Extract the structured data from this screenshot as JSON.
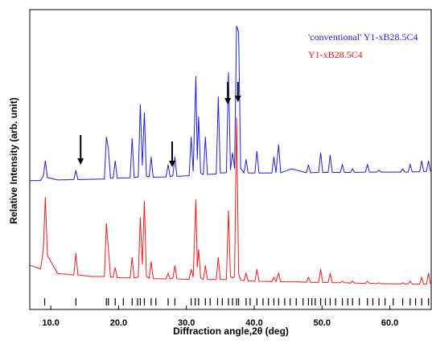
{
  "chart_data": {
    "type": "line",
    "xlabel": "Diffraction angle,2θ (deg)",
    "ylabel": "Relative Intensity (arb. unit)",
    "xlim": [
      6.9,
      66.1
    ],
    "ylim": [
      0,
      100
    ],
    "xticks": [
      {
        "value": 10,
        "label": "10.0"
      },
      {
        "value": 20,
        "label": "20.0"
      },
      {
        "value": 30,
        "label": "30.0"
      },
      {
        "value": 40,
        "label": "40.0"
      },
      {
        "value": 50,
        "label": "50.0"
      },
      {
        "value": 60,
        "label": "60.0"
      }
    ],
    "x": [
      7.0,
      8.5,
      8.9,
      9.2,
      9.5,
      11,
      13.4,
      13.7,
      14.0,
      16,
      17.9,
      18.2,
      18.5,
      18.8,
      19.2,
      19.5,
      19.8,
      21.7,
      22.0,
      22.3,
      22.9,
      23.2,
      23.5,
      23.8,
      24.1,
      24.5,
      24.8,
      25.1,
      27.0,
      27.3,
      27.6,
      28.0,
      28.3,
      28.6,
      30.4,
      30.7,
      31.0,
      31.4,
      31.6,
      31.8,
      32.1,
      32.5,
      32.8,
      33.1,
      34.4,
      34.7,
      35.0,
      35.9,
      36.2,
      36.5,
      36.8,
      37.1,
      37.4,
      37.7,
      38.0,
      38.5,
      38.8,
      39.1,
      40.1,
      40.4,
      40.7,
      42.6,
      42.9,
      43.2,
      43.6,
      43.9,
      45.5,
      47.7,
      48.0,
      48.3,
      49.5,
      49.8,
      50.1,
      50.9,
      51.2,
      51.5,
      52.7,
      53.0,
      53.3,
      54.2,
      54.5,
      54.8,
      56.4,
      56.7,
      57.0,
      58.1,
      58.4,
      58.7,
      61.6,
      61.9,
      62.2,
      62.7,
      63.0,
      63.3,
      64.4,
      64.7,
      65.0,
      65.4,
      65.7,
      66.0
    ],
    "series": [
      {
        "name": "'conventional' Y1-xB28.5C4",
        "color": "#1f1fd6",
        "values": [
          43.0,
          43.0,
          44.5,
          49.6,
          44.0,
          43.2,
          43.3,
          46.4,
          43.3,
          43.4,
          43.5,
          57.6,
          53.6,
          43.8,
          43.8,
          49.6,
          43.8,
          43.9,
          57.1,
          44.0,
          44.2,
          68.4,
          48.0,
          65.7,
          44.5,
          44.2,
          50.9,
          44.1,
          44.2,
          48.3,
          44.3,
          44.6,
          50.9,
          44.4,
          44.6,
          57.6,
          46.0,
          77.7,
          50.0,
          64.3,
          45.5,
          45.0,
          57.6,
          45.0,
          45.2,
          71.0,
          45.5,
          45.6,
          79.1,
          46.5,
          52.3,
          47.0,
          94.6,
          92.5,
          47.0,
          45.6,
          50.1,
          45.5,
          45.5,
          52.8,
          45.5,
          45.5,
          50.9,
          45.6,
          55.0,
          45.6,
          46.9,
          45.6,
          48.3,
          45.6,
          45.7,
          52.3,
          45.7,
          45.7,
          51.5,
          45.7,
          45.7,
          48.3,
          45.7,
          45.7,
          46.9,
          45.7,
          45.8,
          48.3,
          45.8,
          45.8,
          46.5,
          45.8,
          45.8,
          46.9,
          45.8,
          45.8,
          48.3,
          45.9,
          45.9,
          49.6,
          46.0,
          46.0,
          49.6,
          46.0
        ]
      },
      {
        "name": "Y1-xB28.5C4",
        "color": "#ee1c1c",
        "values": [
          14.7,
          13.5,
          20.0,
          37.5,
          18.0,
          12.0,
          11.5,
          18.8,
          11.5,
          11.0,
          11.0,
          28.7,
          20.1,
          10.8,
          10.8,
          14.0,
          10.6,
          10.5,
          17.4,
          10.5,
          10.8,
          30.8,
          15.0,
          36.2,
          11.0,
          10.4,
          16.0,
          10.3,
          10.2,
          12.1,
          10.2,
          10.4,
          14.7,
          10.2,
          10.0,
          13.4,
          10.8,
          36.7,
          14.0,
          20.1,
          10.5,
          10.0,
          14.7,
          10.0,
          10.0,
          17.4,
          10.0,
          10.0,
          33.0,
          11.0,
          10.5,
          11.0,
          64.0,
          12.0,
          9.8,
          9.6,
          12.1,
          9.5,
          9.4,
          13.4,
          9.4,
          9.3,
          10.7,
          9.3,
          12.1,
          9.2,
          9.2,
          9.1,
          10.7,
          9.0,
          9.0,
          13.4,
          9.0,
          9.0,
          12.1,
          8.9,
          8.9,
          9.4,
          8.9,
          8.8,
          9.4,
          8.8,
          8.7,
          9.4,
          8.7,
          8.6,
          8.9,
          8.6,
          8.5,
          8.9,
          8.5,
          8.5,
          9.4,
          8.5,
          8.4,
          10.7,
          8.4,
          8.4,
          12.1,
          8.5
        ]
      }
    ],
    "reflections": [
      9.1,
      13.7,
      18.2,
      18.5,
      19.5,
      20.7,
      22.0,
      22.8,
      23.2,
      23.8,
      24.8,
      25.5,
      27.3,
      28.3,
      30.7,
      31.3,
      31.8,
      32.8,
      33.5,
      34.6,
      35.3,
      36.2,
      36.8,
      37.4,
      37.7,
      38.8,
      39.4,
      40.4,
      41.3,
      42.1,
      42.9,
      43.6,
      44.5,
      45.3,
      46.2,
      47.2,
      48.0,
      48.5,
      49.0,
      49.8,
      50.5,
      51.2,
      52.0,
      53.0,
      53.8,
      54.5,
      55.5,
      56.7,
      57.5,
      58.4,
      59.3,
      60.5,
      61.9,
      63.0,
      63.8,
      64.7,
      65.7
    ],
    "arrows": [
      14.4,
      27.9,
      36.1,
      37.6
    ]
  }
}
